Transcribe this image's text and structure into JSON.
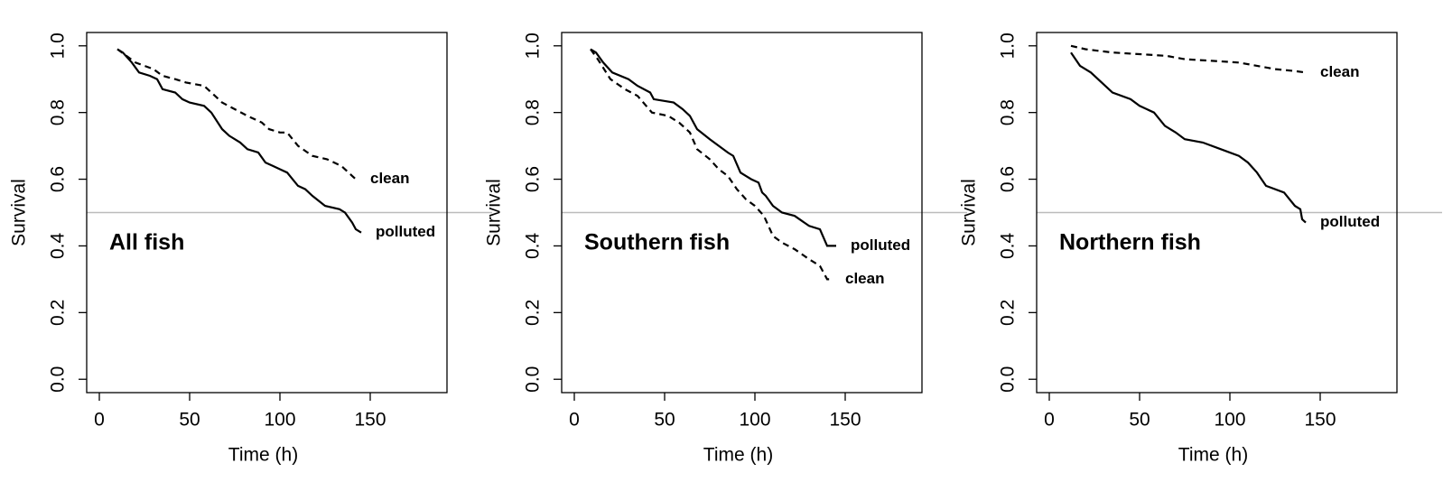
{
  "chart_data": [
    {
      "type": "line",
      "annotation": "All fish",
      "xlabel": "Time (h)",
      "ylabel": "Survival",
      "xlim": [
        -7,
        192.5
      ],
      "ylim": [
        -0.04,
        1.04
      ],
      "xticks": [
        0,
        50,
        100,
        150
      ],
      "yticks": [
        {
          "value": 0,
          "label": "0.0"
        },
        0.2,
        0.4,
        0.6,
        0.8,
        {
          "value": 1,
          "label": "1.0"
        }
      ],
      "hline": 0.5,
      "hline_color": "#bbbbbb",
      "series": [
        {
          "name": "clean",
          "color": "#000000",
          "dashed": true,
          "x": [
            10,
            15,
            20,
            30,
            35,
            42,
            48,
            58,
            62,
            68,
            75,
            82,
            90,
            94,
            100,
            104,
            110,
            118,
            126,
            134,
            140,
            142
          ],
          "values": [
            0.99,
            0.97,
            0.95,
            0.93,
            0.91,
            0.9,
            0.89,
            0.88,
            0.86,
            0.83,
            0.81,
            0.79,
            0.77,
            0.75,
            0.74,
            0.74,
            0.7,
            0.67,
            0.66,
            0.64,
            0.61,
            0.6
          ]
        },
        {
          "name": "polluted",
          "color": "#000000",
          "dashed": false,
          "x": [
            10,
            13,
            18,
            22,
            28,
            32,
            35,
            42,
            46,
            50,
            58,
            62,
            68,
            72,
            78,
            82,
            88,
            92,
            96,
            100,
            104,
            110,
            114,
            118,
            125,
            133,
            136,
            140,
            142,
            145
          ],
          "values": [
            0.99,
            0.98,
            0.95,
            0.92,
            0.91,
            0.9,
            0.87,
            0.86,
            0.84,
            0.83,
            0.82,
            0.8,
            0.75,
            0.73,
            0.71,
            0.69,
            0.68,
            0.65,
            0.64,
            0.63,
            0.62,
            0.58,
            0.57,
            0.55,
            0.52,
            0.51,
            0.5,
            0.47,
            0.45,
            0.44
          ]
        }
      ]
    },
    {
      "type": "line",
      "annotation": "Southern fish",
      "xlabel": "Time (h)",
      "ylabel": "Survival",
      "xlim": [
        -7,
        192.5
      ],
      "ylim": [
        -0.04,
        1.04
      ],
      "xticks": [
        0,
        50,
        100,
        150
      ],
      "yticks": [
        {
          "value": 0,
          "label": "0.0"
        },
        0.2,
        0.4,
        0.6,
        0.8,
        {
          "value": 1,
          "label": "1.0"
        }
      ],
      "hline": 0.5,
      "hline_color": "#bbbbbb",
      "series": [
        {
          "name": "polluted",
          "color": "#000000",
          "dashed": false,
          "x": [
            9,
            12,
            16,
            21,
            30,
            35,
            42,
            44,
            55,
            60,
            64,
            68,
            75,
            85,
            88,
            92,
            95,
            98,
            102,
            104,
            106,
            110,
            115,
            122,
            130,
            136,
            140,
            145
          ],
          "values": [
            0.99,
            0.98,
            0.95,
            0.92,
            0.9,
            0.88,
            0.86,
            0.84,
            0.83,
            0.81,
            0.79,
            0.75,
            0.72,
            0.68,
            0.67,
            0.62,
            0.61,
            0.6,
            0.59,
            0.56,
            0.55,
            0.52,
            0.5,
            0.49,
            0.46,
            0.45,
            0.4,
            0.4
          ]
        },
        {
          "name": "clean",
          "color": "#000000",
          "dashed": true,
          "x": [
            9,
            13,
            20,
            28,
            35,
            43,
            52,
            58,
            64,
            68,
            75,
            80,
            85,
            90,
            95,
            100,
            105,
            110,
            115,
            122,
            130,
            136,
            140,
            142
          ],
          "values": [
            0.99,
            0.96,
            0.9,
            0.87,
            0.85,
            0.8,
            0.79,
            0.77,
            0.74,
            0.69,
            0.66,
            0.63,
            0.61,
            0.57,
            0.54,
            0.52,
            0.49,
            0.43,
            0.41,
            0.39,
            0.36,
            0.34,
            0.3,
            0.3
          ]
        }
      ]
    },
    {
      "type": "line",
      "annotation": "Northern fish",
      "xlabel": "Time (h)",
      "ylabel": "Survival",
      "xlim": [
        -7,
        192.5
      ],
      "ylim": [
        -0.04,
        1.04
      ],
      "xticks": [
        0,
        50,
        100,
        150
      ],
      "yticks": [
        {
          "value": 0,
          "label": "0.0"
        },
        0.2,
        0.4,
        0.6,
        0.8,
        {
          "value": 1,
          "label": "1.0"
        }
      ],
      "hline": 0.5,
      "hline_color": "#bbbbbb",
      "series": [
        {
          "name": "clean",
          "color": "#000000",
          "dashed": true,
          "x": [
            12,
            20,
            35,
            50,
            65,
            75,
            90,
            105,
            115,
            125,
            135,
            142
          ],
          "values": [
            1.0,
            0.99,
            0.98,
            0.975,
            0.97,
            0.96,
            0.955,
            0.95,
            0.94,
            0.93,
            0.925,
            0.92
          ]
        },
        {
          "name": "polluted",
          "color": "#000000",
          "dashed": false,
          "x": [
            12,
            17,
            23,
            35,
            45,
            50,
            58,
            64,
            70,
            75,
            85,
            95,
            105,
            110,
            115,
            120,
            130,
            136,
            139,
            140,
            142
          ],
          "values": [
            0.98,
            0.94,
            0.92,
            0.86,
            0.84,
            0.82,
            0.8,
            0.76,
            0.74,
            0.72,
            0.71,
            0.69,
            0.67,
            0.65,
            0.62,
            0.58,
            0.56,
            0.52,
            0.51,
            0.48,
            0.47
          ]
        }
      ]
    }
  ]
}
